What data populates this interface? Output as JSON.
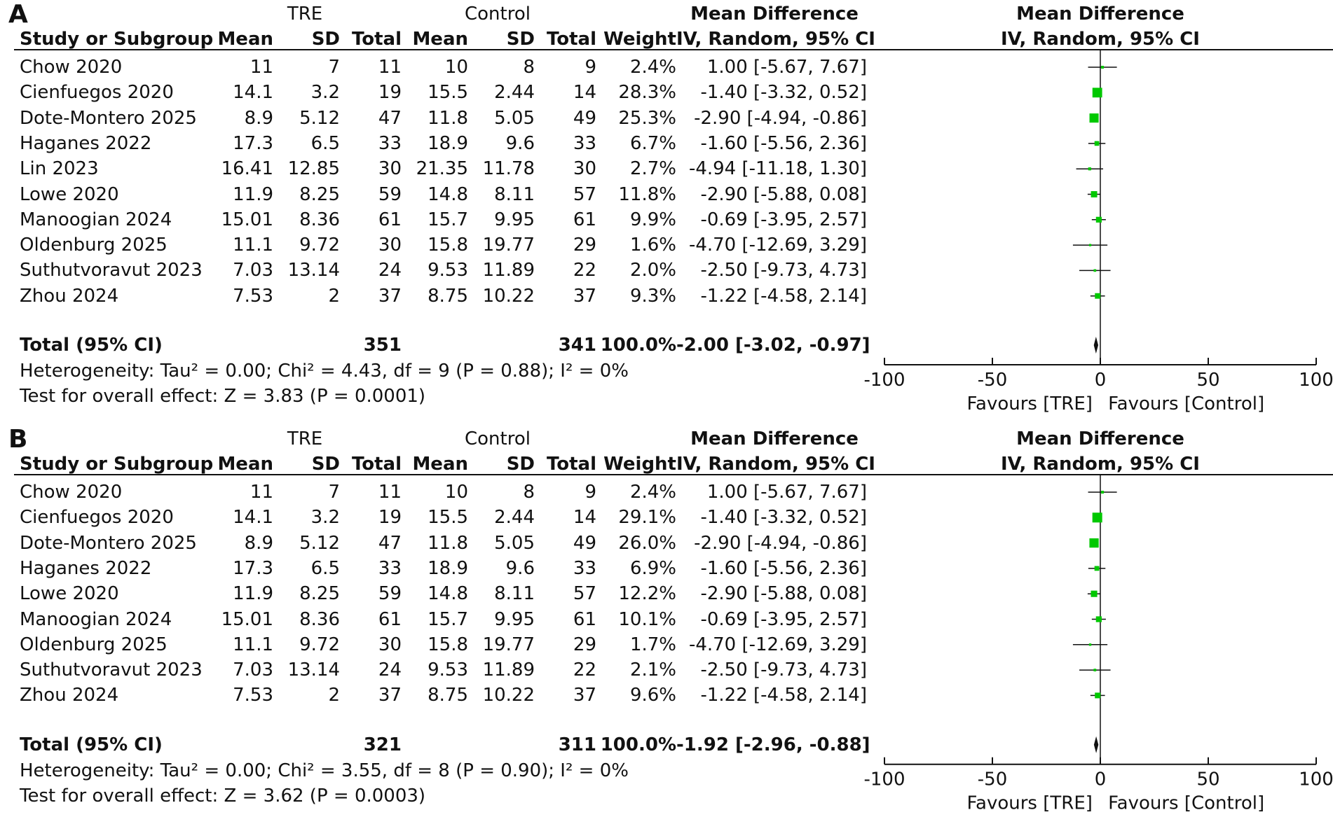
{
  "chart_data": [
    {
      "type": "table",
      "panel": "A",
      "headers": {
        "group_tre": "TRE",
        "group_control": "Control",
        "mean_difference": "Mean Difference",
        "study": "Study or Subgroup",
        "mean": "Mean",
        "sd": "SD",
        "total": "Total",
        "weight": "Weight",
        "method": "IV, Random, 95% CI"
      },
      "rows": [
        {
          "study": "Chow 2020",
          "tre_mean": "11",
          "tre_sd": "7",
          "tre_total": "11",
          "ctrl_mean": "10",
          "ctrl_sd": "8",
          "ctrl_total": "9",
          "weight": "2.4%",
          "md_text": "1.00 [-5.67, 7.67]",
          "md": 1.0,
          "lo": -5.67,
          "hi": 7.67
        },
        {
          "study": "Cienfuegos 2020",
          "tre_mean": "14.1",
          "tre_sd": "3.2",
          "tre_total": "19",
          "ctrl_mean": "15.5",
          "ctrl_sd": "2.44",
          "ctrl_total": "14",
          "weight": "28.3%",
          "md_text": "-1.40 [-3.32, 0.52]",
          "md": -1.4,
          "lo": -3.32,
          "hi": 0.52
        },
        {
          "study": "Dote-Montero 2025",
          "tre_mean": "8.9",
          "tre_sd": "5.12",
          "tre_total": "47",
          "ctrl_mean": "11.8",
          "ctrl_sd": "5.05",
          "ctrl_total": "49",
          "weight": "25.3%",
          "md_text": "-2.90 [-4.94, -0.86]",
          "md": -2.9,
          "lo": -4.94,
          "hi": -0.86
        },
        {
          "study": "Haganes 2022",
          "tre_mean": "17.3",
          "tre_sd": "6.5",
          "tre_total": "33",
          "ctrl_mean": "18.9",
          "ctrl_sd": "9.6",
          "ctrl_total": "33",
          "weight": "6.7%",
          "md_text": "-1.60 [-5.56, 2.36]",
          "md": -1.6,
          "lo": -5.56,
          "hi": 2.36
        },
        {
          "study": "Lin 2023",
          "tre_mean": "16.41",
          "tre_sd": "12.85",
          "tre_total": "30",
          "ctrl_mean": "21.35",
          "ctrl_sd": "11.78",
          "ctrl_total": "30",
          "weight": "2.7%",
          "md_text": "-4.94 [-11.18, 1.30]",
          "md": -4.94,
          "lo": -11.18,
          "hi": 1.3
        },
        {
          "study": "Lowe 2020",
          "tre_mean": "11.9",
          "tre_sd": "8.25",
          "tre_total": "59",
          "ctrl_mean": "14.8",
          "ctrl_sd": "8.11",
          "ctrl_total": "57",
          "weight": "11.8%",
          "md_text": "-2.90 [-5.88, 0.08]",
          "md": -2.9,
          "lo": -5.88,
          "hi": 0.08
        },
        {
          "study": "Manoogian 2024",
          "tre_mean": "15.01",
          "tre_sd": "8.36",
          "tre_total": "61",
          "ctrl_mean": "15.7",
          "ctrl_sd": "9.95",
          "ctrl_total": "61",
          "weight": "9.9%",
          "md_text": "-0.69 [-3.95, 2.57]",
          "md": -0.69,
          "lo": -3.95,
          "hi": 2.57
        },
        {
          "study": "Oldenburg 2025",
          "tre_mean": "11.1",
          "tre_sd": "9.72",
          "tre_total": "30",
          "ctrl_mean": "15.8",
          "ctrl_sd": "19.77",
          "ctrl_total": "29",
          "weight": "1.6%",
          "md_text": "-4.70 [-12.69, 3.29]",
          "md": -4.7,
          "lo": -12.69,
          "hi": 3.29
        },
        {
          "study": "Suthutvoravut 2023",
          "tre_mean": "7.03",
          "tre_sd": "13.14",
          "tre_total": "24",
          "ctrl_mean": "9.53",
          "ctrl_sd": "11.89",
          "ctrl_total": "22",
          "weight": "2.0%",
          "md_text": "-2.50 [-9.73, 4.73]",
          "md": -2.5,
          "lo": -9.73,
          "hi": 4.73
        },
        {
          "study": "Zhou 2024",
          "tre_mean": "7.53",
          "tre_sd": "2",
          "tre_total": "37",
          "ctrl_mean": "8.75",
          "ctrl_sd": "10.22",
          "ctrl_total": "37",
          "weight": "9.3%",
          "md_text": "-1.22 [-4.58, 2.14]",
          "md": -1.22,
          "lo": -4.58,
          "hi": 2.14
        }
      ],
      "total": {
        "label": "Total (95% CI)",
        "tre_total": "351",
        "ctrl_total": "341",
        "weight": "100.0%",
        "md_text": "-2.00 [-3.02, -0.97]",
        "md": -2.0,
        "lo": -3.02,
        "hi": -0.97
      },
      "heterogeneity": "Heterogeneity: Tau² = 0.00; Chi² = 4.43, df = 9 (P = 0.88); I² = 0%",
      "overall_effect": "Test for overall effect: Z = 3.83 (P = 0.0001)",
      "axis": {
        "ticks": [
          -100,
          -50,
          0,
          50,
          100
        ],
        "xlim": [
          -100,
          100
        ],
        "left_label": "Favours [TRE]",
        "right_label": "Favours [Control]"
      },
      "marker_color": "#00c800"
    },
    {
      "type": "table",
      "panel": "B",
      "headers": {
        "group_tre": "TRE",
        "group_control": "Control",
        "mean_difference": "Mean Difference",
        "study": "Study or Subgroup",
        "mean": "Mean",
        "sd": "SD",
        "total": "Total",
        "weight": "Weight",
        "method": "IV, Random, 95% CI"
      },
      "rows": [
        {
          "study": "Chow 2020",
          "tre_mean": "11",
          "tre_sd": "7",
          "tre_total": "11",
          "ctrl_mean": "10",
          "ctrl_sd": "8",
          "ctrl_total": "9",
          "weight": "2.4%",
          "md_text": "1.00 [-5.67, 7.67]",
          "md": 1.0,
          "lo": -5.67,
          "hi": 7.67
        },
        {
          "study": "Cienfuegos 2020",
          "tre_mean": "14.1",
          "tre_sd": "3.2",
          "tre_total": "19",
          "ctrl_mean": "15.5",
          "ctrl_sd": "2.44",
          "ctrl_total": "14",
          "weight": "29.1%",
          "md_text": "-1.40 [-3.32, 0.52]",
          "md": -1.4,
          "lo": -3.32,
          "hi": 0.52
        },
        {
          "study": "Dote-Montero 2025",
          "tre_mean": "8.9",
          "tre_sd": "5.12",
          "tre_total": "47",
          "ctrl_mean": "11.8",
          "ctrl_sd": "5.05",
          "ctrl_total": "49",
          "weight": "26.0%",
          "md_text": "-2.90 [-4.94, -0.86]",
          "md": -2.9,
          "lo": -4.94,
          "hi": -0.86
        },
        {
          "study": "Haganes 2022",
          "tre_mean": "17.3",
          "tre_sd": "6.5",
          "tre_total": "33",
          "ctrl_mean": "18.9",
          "ctrl_sd": "9.6",
          "ctrl_total": "33",
          "weight": "6.9%",
          "md_text": "-1.60 [-5.56, 2.36]",
          "md": -1.6,
          "lo": -5.56,
          "hi": 2.36
        },
        {
          "study": "Lowe 2020",
          "tre_mean": "11.9",
          "tre_sd": "8.25",
          "tre_total": "59",
          "ctrl_mean": "14.8",
          "ctrl_sd": "8.11",
          "ctrl_total": "57",
          "weight": "12.2%",
          "md_text": "-2.90 [-5.88, 0.08]",
          "md": -2.9,
          "lo": -5.88,
          "hi": 0.08
        },
        {
          "study": "Manoogian 2024",
          "tre_mean": "15.01",
          "tre_sd": "8.36",
          "tre_total": "61",
          "ctrl_mean": "15.7",
          "ctrl_sd": "9.95",
          "ctrl_total": "61",
          "weight": "10.1%",
          "md_text": "-0.69 [-3.95, 2.57]",
          "md": -0.69,
          "lo": -3.95,
          "hi": 2.57
        },
        {
          "study": "Oldenburg 2025",
          "tre_mean": "11.1",
          "tre_sd": "9.72",
          "tre_total": "30",
          "ctrl_mean": "15.8",
          "ctrl_sd": "19.77",
          "ctrl_total": "29",
          "weight": "1.7%",
          "md_text": "-4.70 [-12.69, 3.29]",
          "md": -4.7,
          "lo": -12.69,
          "hi": 3.29
        },
        {
          "study": "Suthutvoravut 2023",
          "tre_mean": "7.03",
          "tre_sd": "13.14",
          "tre_total": "24",
          "ctrl_mean": "9.53",
          "ctrl_sd": "11.89",
          "ctrl_total": "22",
          "weight": "2.1%",
          "md_text": "-2.50 [-9.73, 4.73]",
          "md": -2.5,
          "lo": -9.73,
          "hi": 4.73
        },
        {
          "study": "Zhou 2024",
          "tre_mean": "7.53",
          "tre_sd": "2",
          "tre_total": "37",
          "ctrl_mean": "8.75",
          "ctrl_sd": "10.22",
          "ctrl_total": "37",
          "weight": "9.6%",
          "md_text": "-1.22 [-4.58, 2.14]",
          "md": -1.22,
          "lo": -4.58,
          "hi": 2.14
        }
      ],
      "total": {
        "label": "Total (95% CI)",
        "tre_total": "321",
        "ctrl_total": "311",
        "weight": "100.0%",
        "md_text": "-1.92 [-2.96, -0.88]",
        "md": -1.92,
        "lo": -2.96,
        "hi": -0.88
      },
      "heterogeneity": "Heterogeneity: Tau² = 0.00; Chi² = 3.55, df = 8 (P = 0.90); I² = 0%",
      "overall_effect": "Test for overall effect: Z = 3.62 (P = 0.0003)",
      "axis": {
        "ticks": [
          -100,
          -50,
          0,
          50,
          100
        ],
        "xlim": [
          -100,
          100
        ],
        "left_label": "Favours [TRE]",
        "right_label": "Favours [Control]"
      },
      "marker_color": "#00c800"
    }
  ]
}
